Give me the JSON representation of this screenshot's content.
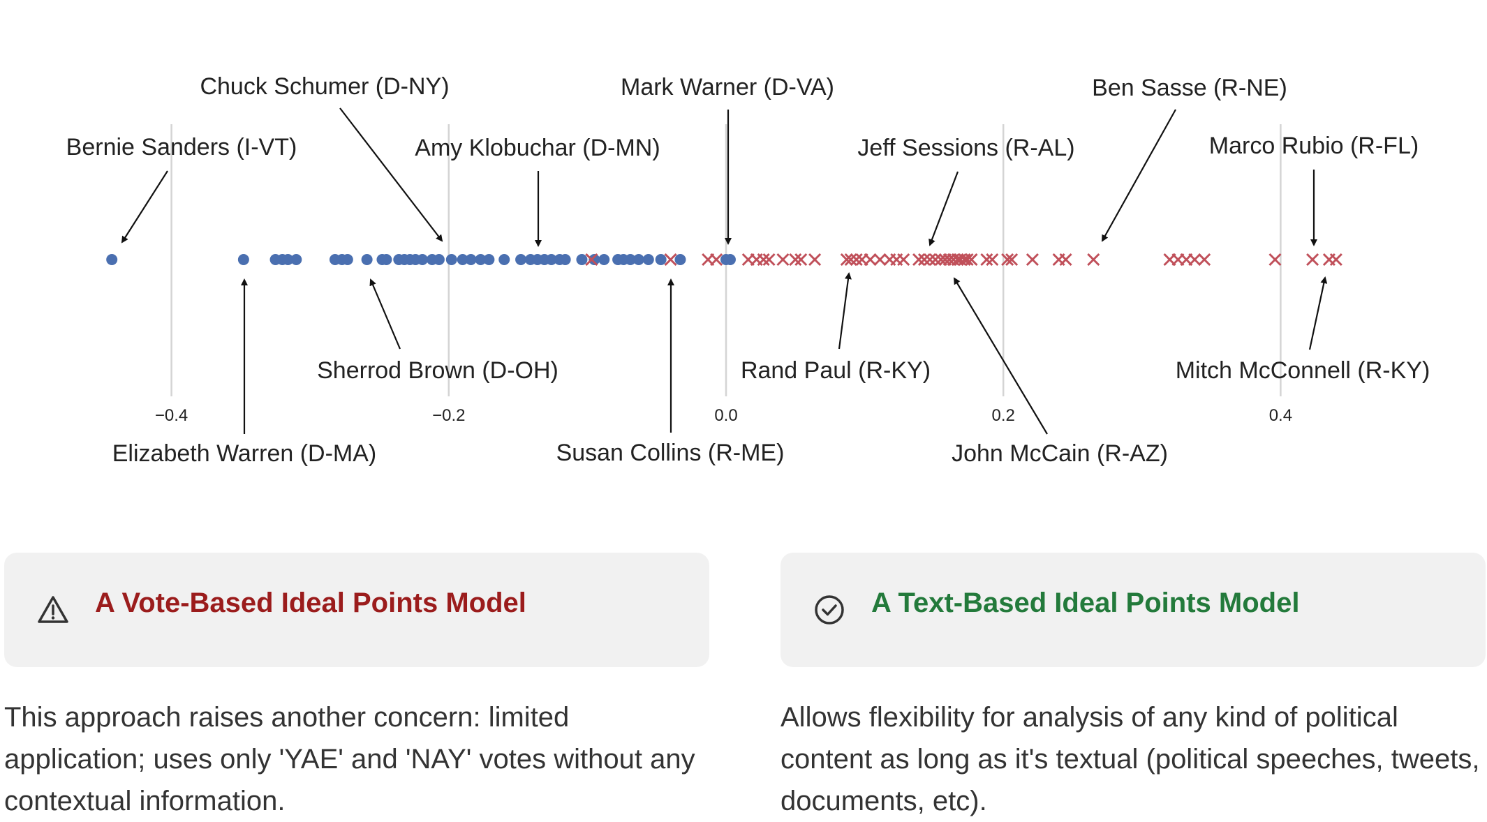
{
  "chart_data": {
    "type": "scatter",
    "xlim": [
      -0.62,
      0.58
    ],
    "x_ticks": [
      "−0.4",
      "−0.2",
      "0.0",
      "0.2",
      "0.4"
    ],
    "x_tick_values": [
      -0.4,
      -0.2,
      0.0,
      0.2,
      0.4
    ],
    "grid": "vertical lines at ticks",
    "series": [
      {
        "color": "#4a6fb0",
        "marker": "circle",
        "x": [
          -0.443,
          -0.348,
          -0.325,
          -0.32,
          -0.316,
          -0.31,
          -0.282,
          -0.277,
          -0.273,
          -0.259,
          -0.248,
          -0.245,
          -0.236,
          -0.232,
          -0.228,
          -0.224,
          -0.219,
          -0.212,
          -0.207,
          -0.198,
          -0.19,
          -0.184,
          -0.177,
          -0.171,
          -0.16,
          -0.148,
          -0.141,
          -0.136,
          -0.131,
          -0.126,
          -0.12,
          -0.116,
          -0.104,
          -0.095,
          -0.088,
          -0.078,
          -0.074,
          -0.069,
          -0.063,
          -0.056,
          -0.047,
          -0.033,
          0.0,
          0.003
        ]
      },
      {
        "color": "#c0505a",
        "marker": "x",
        "x": [
          -0.097,
          -0.04,
          -0.013,
          -0.007,
          0.016,
          0.022,
          0.027,
          0.031,
          0.041,
          0.05,
          0.054,
          0.064,
          0.087,
          0.09,
          0.094,
          0.098,
          0.104,
          0.111,
          0.118,
          0.123,
          0.128,
          0.139,
          0.143,
          0.147,
          0.151,
          0.155,
          0.158,
          0.161,
          0.164,
          0.167,
          0.169,
          0.172,
          0.174,
          0.177,
          0.188,
          0.192,
          0.203,
          0.206,
          0.221,
          0.24,
          0.245,
          0.265,
          0.32,
          0.326,
          0.332,
          0.338,
          0.345,
          0.396,
          0.423,
          0.435,
          0.44
        ]
      }
    ],
    "annotations": [
      {
        "label": "Bernie Sanders (I-VT)",
        "x": -0.443
      },
      {
        "label": "Chuck Schumer (D-NY)",
        "x": -0.2
      },
      {
        "label": "Amy Klobuchar (D-MN)",
        "x": -0.136
      },
      {
        "label": "Mark Warner (D-VA)",
        "x": 0.0
      },
      {
        "label": "Jeff Sessions (R-AL)",
        "x": 0.147
      },
      {
        "label": "Ben Sasse (R-NE)",
        "x": 0.27
      },
      {
        "label": "Marco Rubio (R-FL)",
        "x": 0.423
      },
      {
        "label": "Elizabeth Warren (D-MA)",
        "x": -0.348
      },
      {
        "label": "Sherrod Brown (D-OH)",
        "x": -0.259
      },
      {
        "label": "Susan Collins (R-ME)",
        "x": -0.04
      },
      {
        "label": "Rand Paul (R-KY)",
        "x": 0.087
      },
      {
        "label": "John McCain (R-AZ)",
        "x": 0.161
      },
      {
        "label": "Mitch McConnell (R-KY)",
        "x": 0.43
      }
    ]
  },
  "callouts": {
    "left": {
      "title": "A Vote-Based Ideal Points Model",
      "icon": "warning-triangle-icon",
      "title_color": "#9b1c1c",
      "text": "This approach raises another concern: limited application; uses only 'YAE' and 'NAY' votes without any contextual information."
    },
    "right": {
      "title": "A Text-Based Ideal Points Model",
      "icon": "check-circle-icon",
      "title_color": "#237a3b",
      "text": "Allows flexibility for analysis of any kind of political content as long as it's textual (political speeches, tweets, documents, etc)."
    }
  }
}
